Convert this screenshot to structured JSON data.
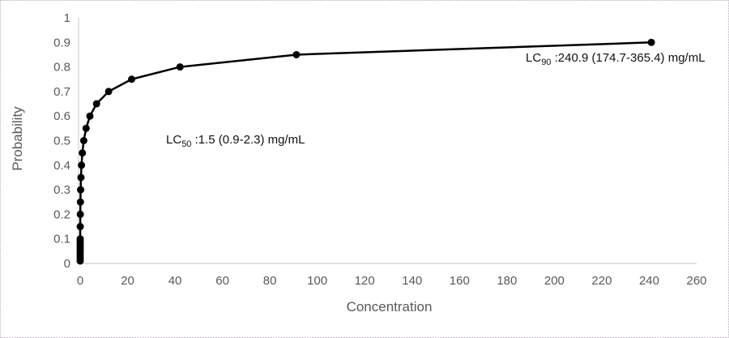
{
  "chart_data": {
    "type": "line",
    "title": "",
    "xlabel": "Concentration",
    "ylabel": "Probability",
    "xlim": [
      0,
      260
    ],
    "ylim": [
      0,
      1
    ],
    "x_ticks": [
      0,
      20,
      40,
      60,
      80,
      100,
      120,
      140,
      160,
      180,
      200,
      220,
      240,
      260
    ],
    "y_ticks": [
      0,
      0.1,
      0.2,
      0.3,
      0.4,
      0.5,
      0.6,
      0.7,
      0.8,
      0.9,
      1
    ],
    "y_tick_labels": [
      "0",
      "0.1",
      "0.2",
      "0.3",
      "0.4",
      "0.5",
      "0.6",
      "0.7",
      "0.8",
      "0.9",
      "1"
    ],
    "grid": false,
    "legend": "none",
    "tick_color": "#595959",
    "axis_line_color": "#d9d9d9",
    "series": [
      {
        "name": "probability-curve",
        "color": "#000000",
        "marker": "circle",
        "marker_radius": 4.5,
        "line_width": 2.5,
        "points": [
          [
            0.0001,
            0.01
          ],
          [
            0.0004,
            0.02
          ],
          [
            0.0009,
            0.03
          ],
          [
            0.0015,
            0.04
          ],
          [
            0.0022,
            0.05
          ],
          [
            0.0032,
            0.06
          ],
          [
            0.0043,
            0.07
          ],
          [
            0.0057,
            0.08
          ],
          [
            0.0074,
            0.09
          ],
          [
            0.0093,
            0.1
          ],
          [
            0.025,
            0.15
          ],
          [
            0.053,
            0.2
          ],
          [
            0.1,
            0.25
          ],
          [
            0.19,
            0.3
          ],
          [
            0.33,
            0.35
          ],
          [
            0.55,
            0.4
          ],
          [
            0.91,
            0.45
          ],
          [
            1.5,
            0.5
          ],
          [
            2.5,
            0.55
          ],
          [
            4.1,
            0.6
          ],
          [
            6.9,
            0.65
          ],
          [
            12.0,
            0.7
          ],
          [
            21.7,
            0.75
          ],
          [
            42.1,
            0.8
          ],
          [
            91.2,
            0.85
          ],
          [
            240.9,
            0.9
          ]
        ]
      }
    ],
    "annotations": {
      "lc50": {
        "prefix": "LC",
        "sub": "50",
        "text": " :1.5 (0.9-2.3) mg/mL"
      },
      "lc90": {
        "prefix": "LC",
        "sub": "90",
        "text": " :240.9 (174.7-365.4) mg/mL"
      }
    }
  }
}
